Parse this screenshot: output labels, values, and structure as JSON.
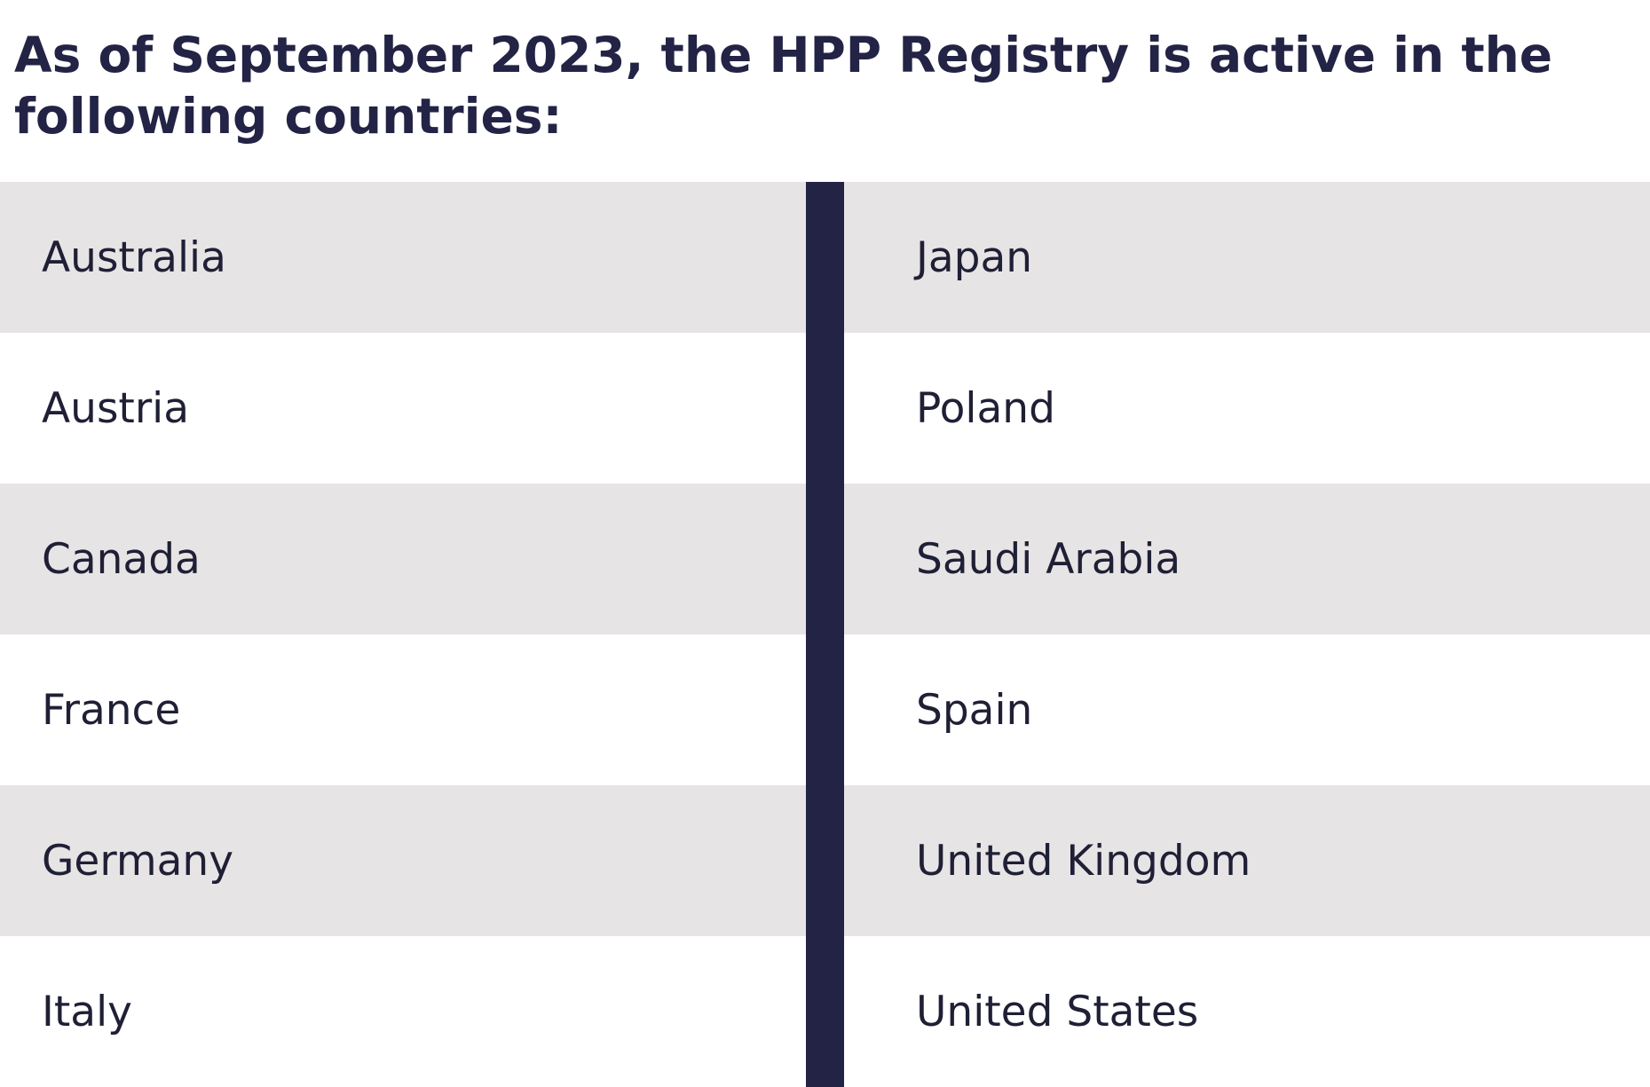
{
  "heading": "As of September 2023, the HPP Registry is active in the following countries:",
  "countries": {
    "left": [
      "Australia",
      "Austria",
      "Canada",
      "France",
      "Germany",
      "Italy"
    ],
    "right": [
      "Japan",
      "Poland",
      "Saudi Arabia",
      "Spain",
      "United Kingdom",
      "United States"
    ]
  },
  "colors": {
    "heading": "#232346",
    "divider": "#232346",
    "row_shaded": "#e7e4e5",
    "row_plain": "#ffffff",
    "text": "#1f1f35"
  }
}
